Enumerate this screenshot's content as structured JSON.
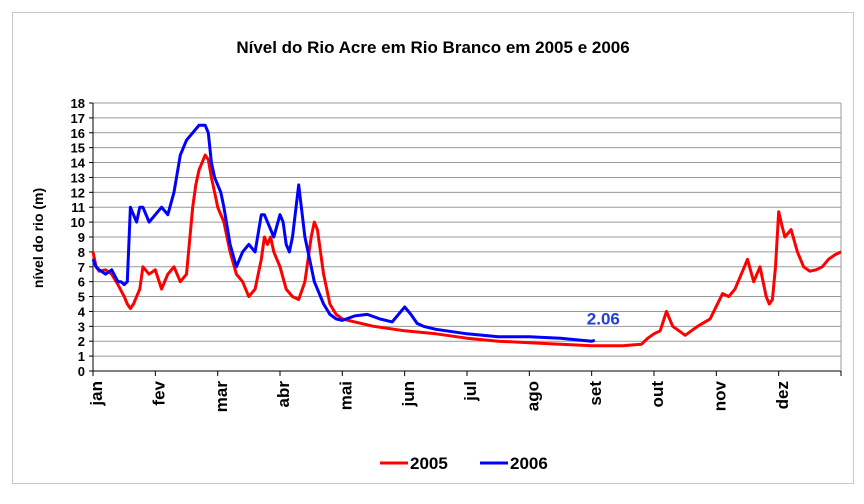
{
  "chart_data": {
    "type": "line",
    "title": "Nível do Rio Acre em Rio Branco em 2005 e 2006",
    "ylabel": "nível do rio (m)",
    "xlabel": "",
    "ylim": [
      0,
      18
    ],
    "yticks": [
      0,
      1,
      2,
      3,
      4,
      5,
      6,
      7,
      8,
      9,
      10,
      11,
      12,
      13,
      14,
      15,
      16,
      17,
      18
    ],
    "xlim": [
      0,
      12
    ],
    "month_labels": [
      "jan",
      "fev",
      "mar",
      "abr",
      "mai",
      "jun",
      "jul",
      "ago",
      "set",
      "out",
      "nov",
      "dez"
    ],
    "grid": true,
    "legend_position": "bottom",
    "series": [
      {
        "name": "2005",
        "color": "#ff0000",
        "x": [
          0,
          0.05,
          0.1,
          0.2,
          0.3,
          0.4,
          0.5,
          0.55,
          0.6,
          0.65,
          0.7,
          0.75,
          0.8,
          0.9,
          1.0,
          1.1,
          1.2,
          1.3,
          1.4,
          1.5,
          1.6,
          1.65,
          1.7,
          1.75,
          1.8,
          1.85,
          1.9,
          1.95,
          2.0,
          2.05,
          2.1,
          2.2,
          2.3,
          2.4,
          2.5,
          2.6,
          2.7,
          2.75,
          2.8,
          2.85,
          2.9,
          3.0,
          3.1,
          3.2,
          3.3,
          3.4,
          3.5,
          3.55,
          3.6,
          3.65,
          3.7,
          3.8,
          3.9,
          4.0,
          4.2,
          4.5,
          5.0,
          5.5,
          6.0,
          6.5,
          7.0,
          7.5,
          8.0,
          8.5,
          8.8,
          8.9,
          9.0,
          9.1,
          9.2,
          9.3,
          9.5,
          9.7,
          9.9,
          10.1,
          10.2,
          10.3,
          10.4,
          10.5,
          10.6,
          10.7,
          10.75,
          10.8,
          10.85,
          10.9,
          10.95,
          11.0,
          11.05,
          11.1,
          11.2,
          11.3,
          11.4,
          11.5,
          11.6,
          11.7,
          11.8,
          11.9,
          12.0
        ],
        "values": [
          8.0,
          7.0,
          6.7,
          6.8,
          6.5,
          5.8,
          5.0,
          4.5,
          4.2,
          4.5,
          5.0,
          5.5,
          7.0,
          6.5,
          6.8,
          5.5,
          6.5,
          7.0,
          6.0,
          6.5,
          11.0,
          12.5,
          13.5,
          14.0,
          14.5,
          14.2,
          13.0,
          12.0,
          11.0,
          10.5,
          10.0,
          8.0,
          6.5,
          6.0,
          5.0,
          5.5,
          7.5,
          9.0,
          8.5,
          9.0,
          8.0,
          7.0,
          5.5,
          5.0,
          4.8,
          6.0,
          9.0,
          10.0,
          9.5,
          8.0,
          6.5,
          4.5,
          3.8,
          3.5,
          3.3,
          3.0,
          2.7,
          2.5,
          2.2,
          2.0,
          1.9,
          1.8,
          1.7,
          1.7,
          1.8,
          2.2,
          2.5,
          2.7,
          4.0,
          3.0,
          2.4,
          3.0,
          3.5,
          5.2,
          5.0,
          5.5,
          6.5,
          7.5,
          6.0,
          7.0,
          6.0,
          5.0,
          4.5,
          4.8,
          7.0,
          10.7,
          9.8,
          9.0,
          9.5,
          8.0,
          7.0,
          6.7,
          6.8,
          7.0,
          7.5,
          7.8,
          8.0
        ]
      },
      {
        "name": "2006",
        "color": "#0000ff",
        "x": [
          0,
          0.05,
          0.1,
          0.2,
          0.3,
          0.4,
          0.45,
          0.5,
          0.55,
          0.6,
          0.65,
          0.7,
          0.75,
          0.8,
          0.9,
          1.0,
          1.1,
          1.2,
          1.3,
          1.4,
          1.45,
          1.5,
          1.6,
          1.7,
          1.8,
          1.85,
          1.9,
          1.95,
          2.0,
          2.05,
          2.1,
          2.2,
          2.3,
          2.4,
          2.5,
          2.6,
          2.7,
          2.75,
          2.8,
          2.9,
          3.0,
          3.05,
          3.1,
          3.15,
          3.2,
          3.3,
          3.4,
          3.5,
          3.55,
          3.6,
          3.65,
          3.7,
          3.8,
          3.9,
          4.0,
          4.2,
          4.4,
          4.6,
          4.8,
          5.0,
          5.1,
          5.2,
          5.3,
          5.5,
          6.0,
          6.5,
          7.0,
          7.5,
          8.0,
          8.05
        ],
        "values": [
          7.5,
          7.0,
          6.8,
          6.5,
          6.8,
          6.0,
          6.0,
          5.8,
          6.0,
          11.0,
          10.5,
          10.0,
          11.0,
          11.0,
          10.0,
          10.5,
          11.0,
          10.5,
          12.0,
          14.5,
          15.0,
          15.5,
          16.0,
          16.5,
          16.5,
          16.0,
          14.0,
          13.0,
          12.5,
          12.0,
          11.0,
          8.5,
          7.0,
          8.0,
          8.5,
          8.0,
          10.5,
          10.5,
          10.0,
          9.0,
          10.5,
          10.0,
          8.5,
          8.0,
          9.0,
          12.5,
          9.0,
          7.0,
          6.0,
          5.5,
          5.0,
          4.5,
          3.8,
          3.5,
          3.4,
          3.7,
          3.8,
          3.5,
          3.3,
          4.3,
          3.8,
          3.2,
          3.0,
          2.8,
          2.5,
          2.3,
          2.3,
          2.2,
          2.0,
          2.06
        ]
      }
    ],
    "annotations": [
      {
        "text": "2.06",
        "color": "#1f3fd6"
      }
    ]
  }
}
